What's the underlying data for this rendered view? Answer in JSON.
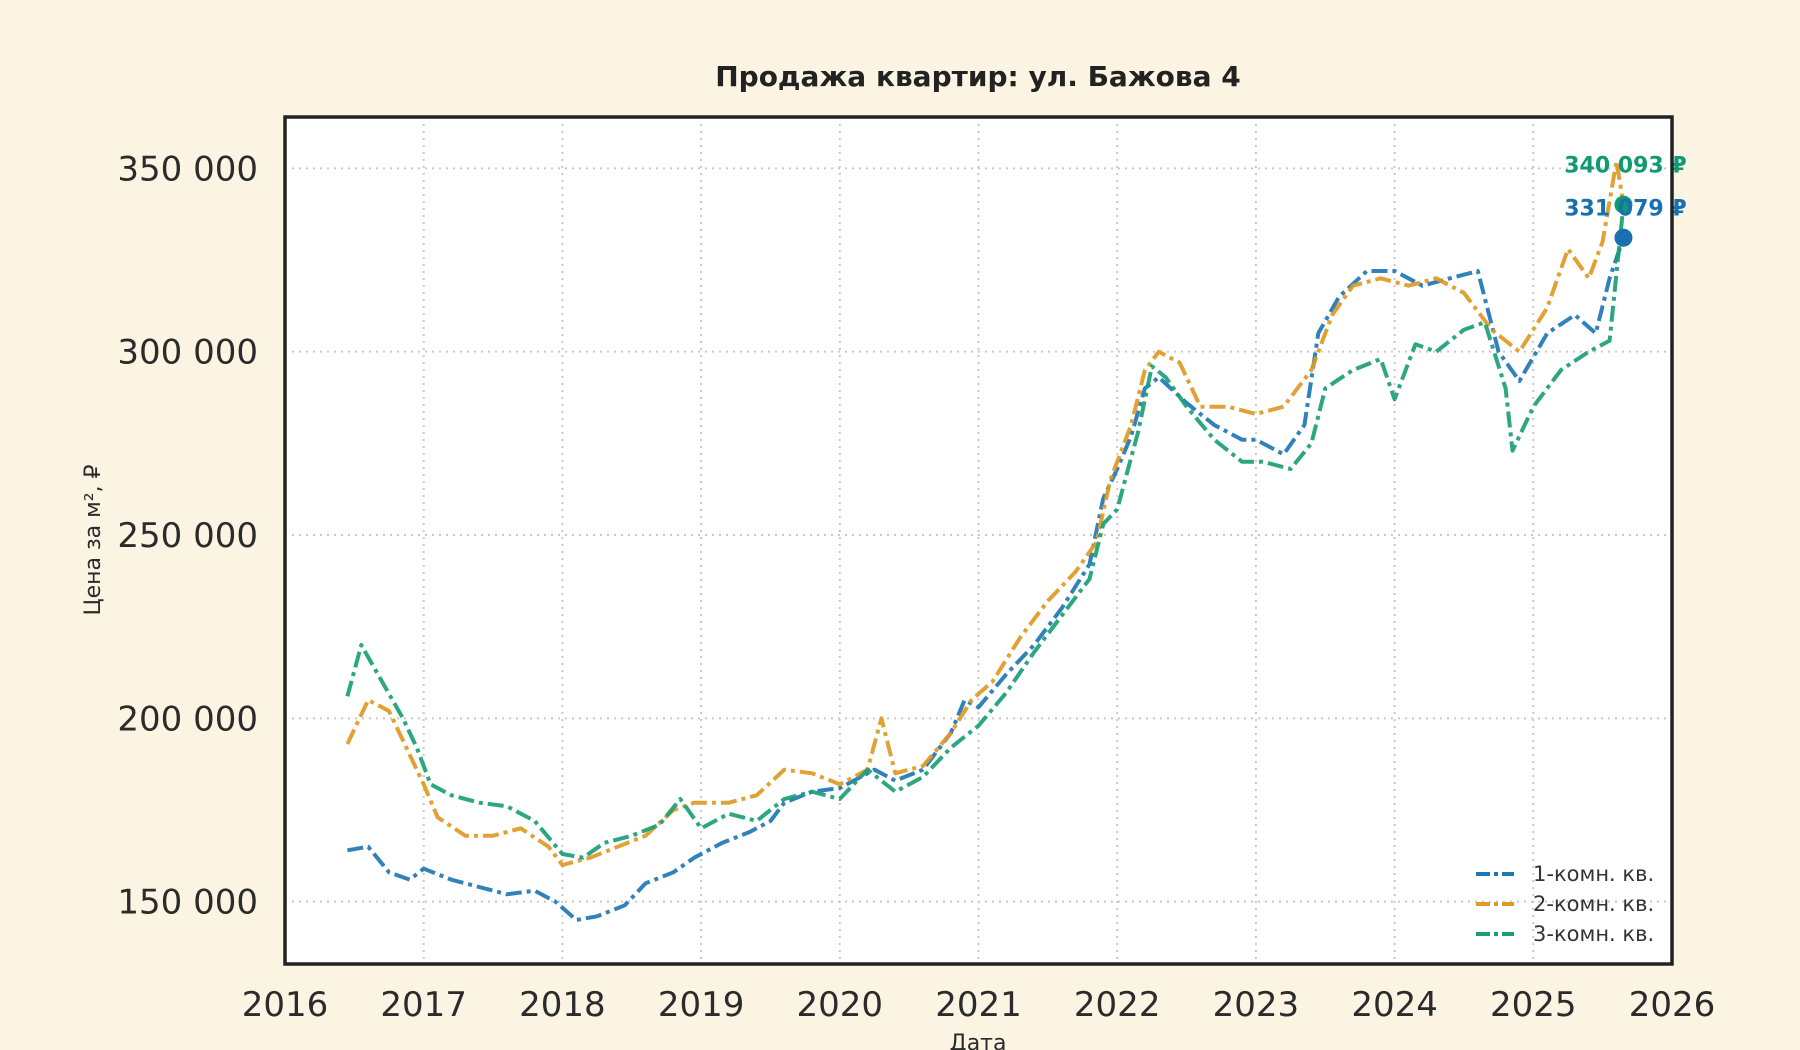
{
  "chart_data": {
    "type": "line",
    "title": "Продажа квартир: ул. Бажова 4",
    "xlabel": "Дата",
    "ylabel": "Цена за м², ₽",
    "xlim": [
      2016,
      2026
    ],
    "ylim": [
      133000,
      364000
    ],
    "x_ticks": [
      2016,
      2017,
      2018,
      2019,
      2020,
      2021,
      2022,
      2023,
      2024,
      2025,
      2026
    ],
    "x_tick_labels": [
      "2016",
      "2017",
      "2018",
      "2019",
      "2020",
      "2021",
      "2022",
      "2023",
      "2024",
      "2025",
      "2026"
    ],
    "y_ticks": [
      150000,
      200000,
      250000,
      300000,
      350000
    ],
    "y_tick_labels": [
      "150 000",
      "200 000",
      "250 000",
      "300 000",
      "350 000"
    ],
    "grid": true,
    "legend_position": "bottom-right",
    "series": [
      {
        "name": "1-комн. кв.",
        "color": "#1f77b4",
        "points": [
          [
            2016.45,
            164000
          ],
          [
            2016.6,
            165000
          ],
          [
            2016.75,
            158000
          ],
          [
            2016.9,
            156000
          ],
          [
            2017.0,
            159000
          ],
          [
            2017.2,
            156000
          ],
          [
            2017.4,
            154000
          ],
          [
            2017.6,
            152000
          ],
          [
            2017.8,
            153000
          ],
          [
            2017.95,
            150000
          ],
          [
            2018.1,
            145000
          ],
          [
            2018.25,
            146000
          ],
          [
            2018.45,
            149000
          ],
          [
            2018.6,
            155000
          ],
          [
            2018.8,
            158000
          ],
          [
            2018.95,
            162000
          ],
          [
            2019.15,
            166000
          ],
          [
            2019.35,
            169000
          ],
          [
            2019.5,
            172000
          ],
          [
            2019.6,
            177000
          ],
          [
            2019.8,
            180000
          ],
          [
            2020.0,
            181000
          ],
          [
            2020.25,
            186000
          ],
          [
            2020.4,
            183000
          ],
          [
            2020.6,
            186000
          ],
          [
            2020.8,
            196000
          ],
          [
            2020.9,
            205000
          ],
          [
            2021.0,
            203000
          ],
          [
            2021.2,
            212000
          ],
          [
            2021.4,
            220000
          ],
          [
            2021.6,
            230000
          ],
          [
            2021.8,
            242000
          ],
          [
            2021.9,
            260000
          ],
          [
            2022.0,
            268000
          ],
          [
            2022.1,
            277000
          ],
          [
            2022.2,
            290000
          ],
          [
            2022.3,
            293000
          ],
          [
            2022.5,
            286000
          ],
          [
            2022.7,
            280000
          ],
          [
            2022.9,
            276000
          ],
          [
            2023.0,
            276000
          ],
          [
            2023.2,
            272000
          ],
          [
            2023.35,
            280000
          ],
          [
            2023.45,
            305000
          ],
          [
            2023.6,
            315000
          ],
          [
            2023.8,
            322000
          ],
          [
            2024.0,
            322000
          ],
          [
            2024.2,
            318000
          ],
          [
            2024.4,
            320000
          ],
          [
            2024.6,
            322000
          ],
          [
            2024.75,
            300000
          ],
          [
            2024.9,
            292000
          ],
          [
            2025.1,
            305000
          ],
          [
            2025.3,
            310000
          ],
          [
            2025.45,
            305000
          ],
          [
            2025.55,
            320000
          ],
          [
            2025.65,
            331079
          ]
        ]
      },
      {
        "name": "2-комн. кв.",
        "color": "#de9a24",
        "points": [
          [
            2016.45,
            193000
          ],
          [
            2016.6,
            205000
          ],
          [
            2016.75,
            202000
          ],
          [
            2016.9,
            190000
          ],
          [
            2017.0,
            182000
          ],
          [
            2017.1,
            173000
          ],
          [
            2017.3,
            168000
          ],
          [
            2017.5,
            168000
          ],
          [
            2017.7,
            170000
          ],
          [
            2017.9,
            165000
          ],
          [
            2018.0,
            160000
          ],
          [
            2018.2,
            162000
          ],
          [
            2018.4,
            165000
          ],
          [
            2018.6,
            168000
          ],
          [
            2018.8,
            175000
          ],
          [
            2018.95,
            177000
          ],
          [
            2019.2,
            177000
          ],
          [
            2019.4,
            179000
          ],
          [
            2019.6,
            186000
          ],
          [
            2019.8,
            185000
          ],
          [
            2020.0,
            182000
          ],
          [
            2020.2,
            186000
          ],
          [
            2020.3,
            200000
          ],
          [
            2020.4,
            185000
          ],
          [
            2020.6,
            187000
          ],
          [
            2020.8,
            196000
          ],
          [
            2020.95,
            205000
          ],
          [
            2021.1,
            210000
          ],
          [
            2021.3,
            222000
          ],
          [
            2021.5,
            232000
          ],
          [
            2021.7,
            240000
          ],
          [
            2021.85,
            248000
          ],
          [
            2021.95,
            265000
          ],
          [
            2022.1,
            280000
          ],
          [
            2022.2,
            295000
          ],
          [
            2022.3,
            300000
          ],
          [
            2022.45,
            297000
          ],
          [
            2022.6,
            285000
          ],
          [
            2022.8,
            285000
          ],
          [
            2023.0,
            283000
          ],
          [
            2023.2,
            285000
          ],
          [
            2023.4,
            295000
          ],
          [
            2023.55,
            310000
          ],
          [
            2023.7,
            318000
          ],
          [
            2023.9,
            320000
          ],
          [
            2024.1,
            318000
          ],
          [
            2024.3,
            320000
          ],
          [
            2024.5,
            316000
          ],
          [
            2024.7,
            306000
          ],
          [
            2024.9,
            300000
          ],
          [
            2025.1,
            312000
          ],
          [
            2025.25,
            328000
          ],
          [
            2025.4,
            320000
          ],
          [
            2025.5,
            330000
          ],
          [
            2025.6,
            352000
          ],
          [
            2025.65,
            340093
          ]
        ]
      },
      {
        "name": "3-комн. кв.",
        "color": "#1b9e77",
        "points": [
          [
            2016.45,
            206000
          ],
          [
            2016.55,
            220000
          ],
          [
            2016.7,
            210000
          ],
          [
            2016.85,
            200000
          ],
          [
            2016.95,
            192000
          ],
          [
            2017.05,
            182000
          ],
          [
            2017.2,
            179000
          ],
          [
            2017.4,
            177000
          ],
          [
            2017.6,
            176000
          ],
          [
            2017.8,
            172000
          ],
          [
            2018.0,
            163000
          ],
          [
            2018.15,
            162000
          ],
          [
            2018.3,
            166000
          ],
          [
            2018.5,
            168000
          ],
          [
            2018.7,
            171000
          ],
          [
            2018.85,
            178000
          ],
          [
            2019.0,
            170000
          ],
          [
            2019.2,
            174000
          ],
          [
            2019.4,
            172000
          ],
          [
            2019.6,
            178000
          ],
          [
            2019.8,
            180000
          ],
          [
            2020.0,
            178000
          ],
          [
            2020.2,
            186000
          ],
          [
            2020.4,
            180000
          ],
          [
            2020.6,
            184000
          ],
          [
            2020.8,
            192000
          ],
          [
            2021.0,
            198000
          ],
          [
            2021.2,
            207000
          ],
          [
            2021.4,
            218000
          ],
          [
            2021.6,
            228000
          ],
          [
            2021.8,
            238000
          ],
          [
            2021.9,
            253000
          ],
          [
            2022.0,
            257000
          ],
          [
            2022.15,
            278000
          ],
          [
            2022.25,
            296000
          ],
          [
            2022.35,
            293000
          ],
          [
            2022.5,
            285000
          ],
          [
            2022.7,
            276000
          ],
          [
            2022.9,
            270000
          ],
          [
            2023.05,
            270000
          ],
          [
            2023.25,
            268000
          ],
          [
            2023.4,
            275000
          ],
          [
            2023.5,
            290000
          ],
          [
            2023.7,
            295000
          ],
          [
            2023.9,
            298000
          ],
          [
            2024.0,
            287000
          ],
          [
            2024.15,
            302000
          ],
          [
            2024.3,
            300000
          ],
          [
            2024.5,
            306000
          ],
          [
            2024.65,
            308000
          ],
          [
            2024.8,
            290000
          ],
          [
            2024.85,
            273000
          ],
          [
            2025.0,
            285000
          ],
          [
            2025.2,
            295000
          ],
          [
            2025.4,
            300000
          ],
          [
            2025.55,
            303000
          ],
          [
            2025.65,
            340093
          ]
        ]
      }
    ],
    "end_labels": [
      {
        "series": "3-комн. кв.",
        "text": "340 093 ₽",
        "color": "#0f9a6f",
        "x": 2025.65,
        "y": 340093
      },
      {
        "series": "1-комн. кв.",
        "text": "331 079 ₽",
        "color": "#1a6fb0",
        "x": 2025.65,
        "y": 331079
      }
    ]
  }
}
